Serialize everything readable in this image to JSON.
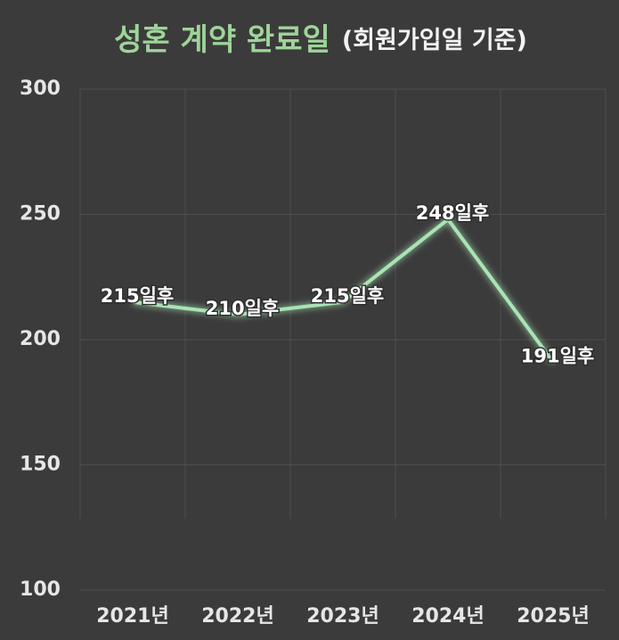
{
  "chart_data": {
    "type": "line",
    "title": "성혼 계약 완료일",
    "subtitle": "(회원가입일 기준)",
    "categories": [
      "2021년",
      "2022년",
      "2023년",
      "2024년",
      "2025년"
    ],
    "series": [
      {
        "name": "성혼 계약 완료일",
        "color": "#a9e3b4",
        "values": [
          215,
          210,
          215,
          248,
          191
        ],
        "value_labels": [
          "215일후",
          "210일후",
          "215일후",
          "248일후",
          "191일후"
        ]
      }
    ],
    "ylim": [
      100,
      300
    ],
    "yticks": [
      100,
      150,
      200,
      250,
      300
    ],
    "grid": true
  }
}
